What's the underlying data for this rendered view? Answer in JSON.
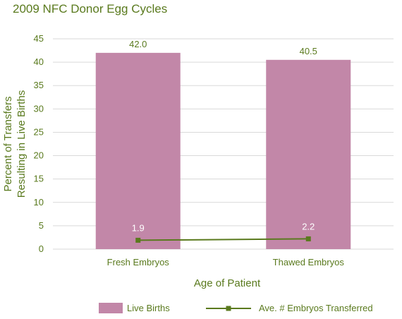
{
  "colors": {
    "text": "#5a7a1e",
    "bar": "#c287a8",
    "line": "#5a7a1e",
    "grid": "#d9d9d9",
    "line_label": "#ffffff"
  },
  "chart_data": {
    "type": "bar",
    "title": "2009 NFC Donor Egg Cycles",
    "xlabel": "Age of Patient",
    "ylabel_lines": [
      "Percent of Transfers",
      "Resulting in Live Births"
    ],
    "categories": [
      "Fresh Embryos",
      "Thawed Embryos"
    ],
    "ylim": [
      0,
      45
    ],
    "yticks": [
      "0",
      "5",
      "10",
      "15",
      "20",
      "25",
      "30",
      "35",
      "40",
      "45"
    ],
    "grid": true,
    "legend_position": "bottom",
    "series": [
      {
        "name": "Live Births",
        "kind": "bar",
        "values": [
          42.0,
          40.5
        ],
        "labels": [
          "42.0",
          "40.5"
        ]
      },
      {
        "name": "Ave. # Embryos Transferred",
        "kind": "line",
        "marker": "square",
        "values": [
          1.9,
          2.2
        ],
        "labels": [
          "1.9",
          "2.2"
        ]
      }
    ]
  }
}
